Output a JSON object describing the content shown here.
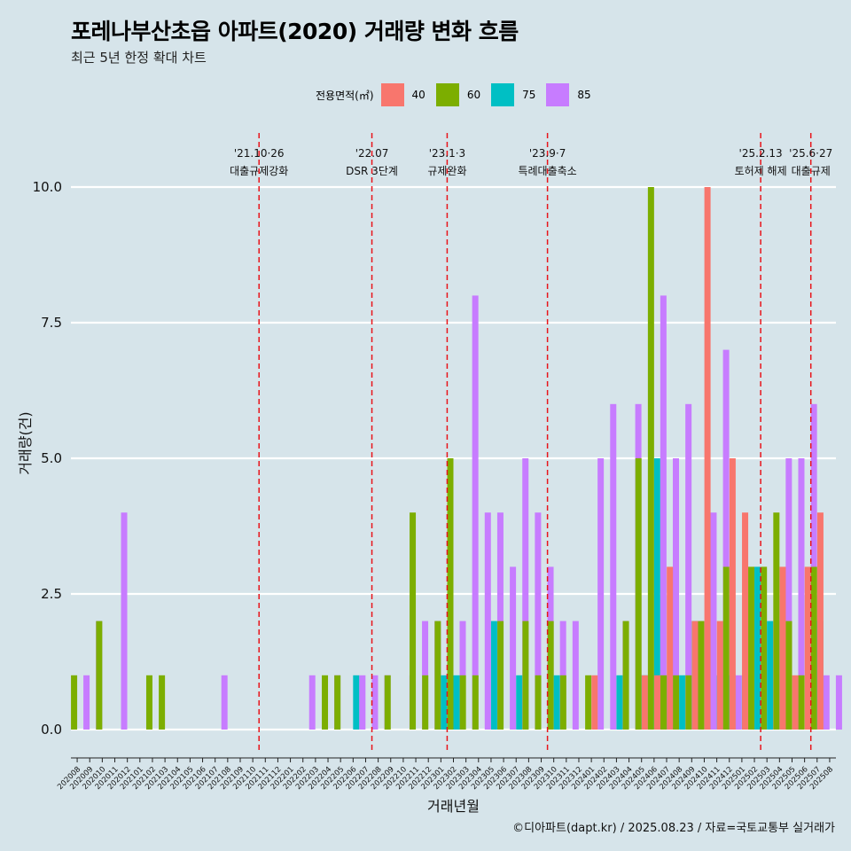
{
  "title": "포레나부산초읍 아파트(2020) 거래량 변화 흐름",
  "subtitle": "최근 5년 한정 확대 차트",
  "caption": "©디아파트(dapt.kr) / 2025.08.23 / 자료=국토교통부 실거래가",
  "legend": {
    "title": "전용면적(㎡)",
    "items": [
      {
        "label": "40",
        "color": "#F8766D"
      },
      {
        "label": "60",
        "color": "#7CAE00"
      },
      {
        "label": "75",
        "color": "#00BFC4"
      },
      {
        "label": "85",
        "color": "#C77CFF"
      }
    ]
  },
  "chart_data": {
    "type": "bar",
    "xlabel": "거래년월",
    "ylabel": "거래량(건)",
    "ylim": [
      -0.45,
      11.0
    ],
    "yticks": [
      "0.0",
      "2.5",
      "5.0",
      "7.5",
      "10.0"
    ],
    "ytick_values": [
      0,
      2.5,
      5,
      7.5,
      10
    ],
    "grid": "horizontal",
    "legend_position": "top",
    "categories": [
      "202008",
      "202009",
      "202010",
      "202011",
      "202012",
      "202101",
      "202102",
      "202103",
      "202104",
      "202105",
      "202106",
      "202107",
      "202108",
      "202109",
      "202110",
      "202111",
      "202112",
      "202201",
      "202202",
      "202203",
      "202204",
      "202205",
      "202206",
      "202207",
      "202208",
      "202209",
      "202210",
      "202211",
      "202212",
      "202301",
      "202302",
      "202303",
      "202304",
      "202305",
      "202306",
      "202307",
      "202308",
      "202309",
      "202310",
      "202311",
      "202312",
      "202401",
      "202402",
      "202403",
      "202404",
      "202405",
      "202406",
      "202407",
      "202408",
      "202409",
      "202410",
      "202411",
      "202412",
      "202501",
      "202502",
      "202503",
      "202504",
      "202505",
      "202506",
      "202507",
      "202508"
    ],
    "series": [
      {
        "name": "40",
        "color": "#F8766D",
        "values": [
          0,
          0,
          0,
          0,
          0,
          0,
          0,
          0,
          0,
          0,
          0,
          0,
          0,
          0,
          0,
          0,
          0,
          0,
          0,
          0,
          0,
          0,
          0,
          0,
          0,
          0,
          0,
          0,
          0,
          0,
          0,
          0,
          0,
          0,
          0,
          0,
          0,
          0,
          0,
          0,
          0,
          0,
          1,
          0,
          0,
          0,
          1,
          1,
          3,
          0,
          2,
          10,
          2,
          5,
          4,
          0,
          0,
          3,
          1,
          3,
          4
        ]
      },
      {
        "name": "60",
        "color": "#7CAE00",
        "values": [
          1,
          0,
          2,
          0,
          0,
          0,
          1,
          1,
          0,
          0,
          0,
          0,
          0,
          0,
          0,
          0,
          0,
          0,
          0,
          0,
          1,
          1,
          0,
          0,
          0,
          1,
          0,
          4,
          1,
          2,
          5,
          1,
          1,
          0,
          2,
          0,
          2,
          1,
          2,
          1,
          0,
          1,
          0,
          0,
          2,
          5,
          10,
          1,
          1,
          1,
          2,
          0,
          3,
          0,
          3,
          3,
          4,
          2,
          1,
          3,
          0
        ]
      },
      {
        "name": "75",
        "color": "#00BFC4",
        "values": [
          0,
          0,
          0,
          0,
          0,
          0,
          0,
          0,
          0,
          0,
          0,
          0,
          0,
          0,
          0,
          0,
          0,
          0,
          0,
          0,
          0,
          0,
          1,
          0,
          0,
          0,
          0,
          0,
          0,
          1,
          1,
          0,
          0,
          2,
          0,
          1,
          0,
          0,
          1,
          0,
          0,
          0,
          0,
          1,
          0,
          1,
          5,
          1,
          1,
          2,
          0,
          1,
          1,
          1,
          3,
          2,
          0,
          0,
          0,
          2,
          0
        ]
      },
      {
        "name": "85",
        "color": "#C77CFF",
        "values": [
          1,
          2,
          0,
          4,
          0,
          0,
          0,
          0,
          0,
          0,
          0,
          1,
          0,
          0,
          0,
          0,
          0,
          0,
          1,
          0,
          1,
          0,
          1,
          1,
          1,
          0,
          1,
          2,
          2,
          0,
          2,
          8,
          4,
          4,
          3,
          5,
          4,
          3,
          2,
          2,
          0,
          5,
          6,
          2,
          6,
          0,
          8,
          5,
          6,
          2,
          4,
          7,
          1,
          1,
          0,
          2,
          5,
          5,
          6,
          1,
          1
        ]
      }
    ],
    "annotations": [
      {
        "after_category": "202110",
        "date": "'21.10·26",
        "label": "대출규제강화"
      },
      {
        "after_category": "202207",
        "date": "'22.07",
        "label": "DSR 3단계"
      },
      {
        "after_category": "202301",
        "date": "'23.1·3",
        "label": "규제완화"
      },
      {
        "after_category": "202309",
        "date": "'23.9·7",
        "label": "특례대출축소"
      },
      {
        "after_category": "202502",
        "date": "'25.2.13",
        "label": "토허제 해제"
      },
      {
        "after_category": "202506",
        "date": "'25.6·27",
        "label": "대출규제"
      }
    ]
  }
}
